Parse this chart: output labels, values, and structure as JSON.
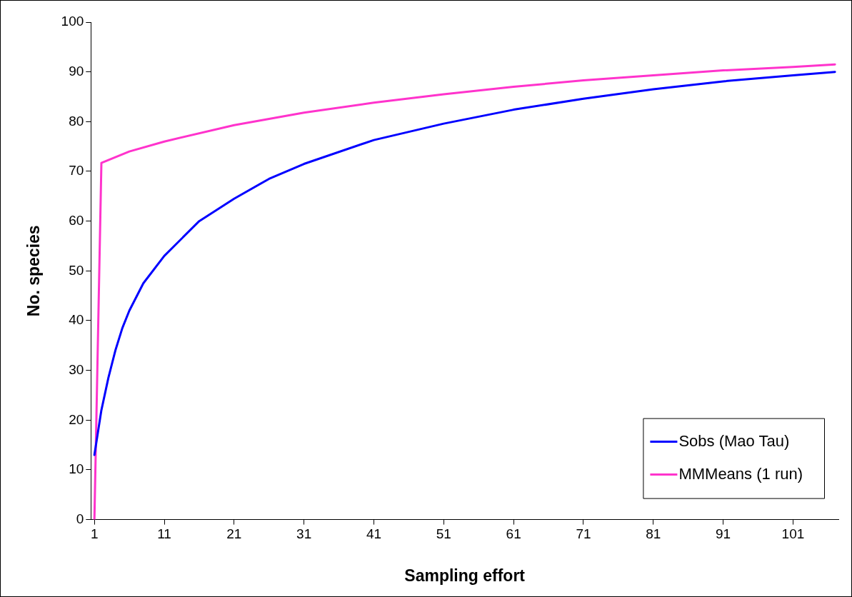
{
  "chart_data": {
    "type": "line",
    "xlabel": "Sampling effort",
    "ylabel": "No. species",
    "xlim": [
      0.5,
      107.5
    ],
    "xticks": [
      1,
      11,
      21,
      31,
      41,
      51,
      61,
      71,
      81,
      91,
      101
    ],
    "ylim": [
      0,
      100
    ],
    "yticks": [
      0,
      10,
      20,
      30,
      40,
      50,
      60,
      70,
      80,
      90,
      100
    ],
    "grid": false,
    "legend": "bottom right",
    "marker": "none",
    "line_style": "solid",
    "series": [
      {
        "name": "Sobs (Mao Tau)",
        "color": "#0000ff",
        "x": [
          1,
          2,
          3,
          4,
          5,
          6,
          8,
          11,
          16,
          21,
          26,
          31,
          41,
          51,
          61,
          71,
          81,
          91,
          101,
          107
        ],
        "values": [
          13,
          22,
          28.5,
          34,
          38.5,
          42,
          47.5,
          53,
          60,
          64.5,
          68.5,
          71.5,
          76.3,
          79.6,
          82.4,
          84.6,
          86.5,
          88.1,
          89.3,
          90
        ]
      },
      {
        "name": "MMMeans (1 run)",
        "color": "#ff33cc",
        "x": [
          1,
          2,
          6,
          11,
          21,
          31,
          41,
          51,
          61,
          71,
          81,
          91,
          101,
          107
        ],
        "values": [
          0,
          71.7,
          74,
          76,
          79.3,
          81.8,
          83.8,
          85.5,
          87,
          88.3,
          89.3,
          90.3,
          91,
          91.5
        ]
      }
    ]
  }
}
